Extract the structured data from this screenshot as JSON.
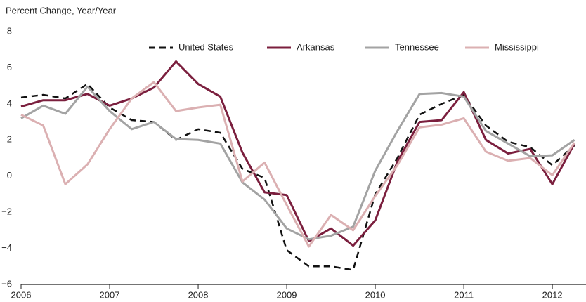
{
  "chart_data": {
    "type": "line",
    "ylabel": "Percent Change, Year/Year",
    "x": [
      2006,
      2006.25,
      2006.5,
      2006.75,
      2007,
      2007.25,
      2007.5,
      2007.75,
      2008,
      2008.25,
      2008.5,
      2008.75,
      2009,
      2009.25,
      2009.5,
      2009.75,
      2010,
      2010.25,
      2010.5,
      2010.75,
      2011,
      2011.25,
      2011.5,
      2011.75,
      2012,
      2012.25
    ],
    "series": [
      {
        "name": "United States",
        "color": "#111111",
        "dashed": true,
        "values": [
          4.35,
          4.5,
          4.3,
          5.1,
          3.8,
          3.1,
          3.0,
          2.0,
          2.6,
          2.4,
          0.4,
          -0.1,
          -4.1,
          -5.0,
          -5.0,
          -5.2,
          -1.0,
          1.0,
          3.4,
          4.0,
          4.5,
          2.8,
          1.9,
          1.6,
          0.6,
          1.7
        ]
      },
      {
        "name": "Arkansas",
        "color": "#7b1f3e",
        "dashed": false,
        "values": [
          3.85,
          4.2,
          4.2,
          4.55,
          3.9,
          4.3,
          4.9,
          6.35,
          5.1,
          4.4,
          1.3,
          -0.9,
          -1.05,
          -3.6,
          -2.9,
          -3.85,
          -2.45,
          0.8,
          3.0,
          3.1,
          4.65,
          2.0,
          1.25,
          1.5,
          -0.45,
          1.8
        ]
      },
      {
        "name": "Tennessee",
        "color": "#a3a3a3",
        "dashed": false,
        "values": [
          3.2,
          3.9,
          3.45,
          4.95,
          3.6,
          2.6,
          3.0,
          2.05,
          2.0,
          1.8,
          -0.35,
          -1.3,
          -2.9,
          -3.5,
          -3.3,
          -2.8,
          0.3,
          2.5,
          4.55,
          4.6,
          4.4,
          2.5,
          1.8,
          1.1,
          1.15,
          2.0
        ]
      },
      {
        "name": "Mississippi",
        "color": "#dbb0b2",
        "dashed": false,
        "values": [
          3.4,
          2.8,
          -0.45,
          0.65,
          2.6,
          4.3,
          5.2,
          3.6,
          3.8,
          3.95,
          -0.3,
          0.75,
          -1.6,
          -3.9,
          -2.15,
          -3.0,
          -1.1,
          0.6,
          2.7,
          2.85,
          3.2,
          1.35,
          0.85,
          1.0,
          0.05,
          1.85
        ]
      }
    ],
    "xlim": [
      2006,
      2012.38
    ],
    "xticks": [
      2006,
      2007,
      2008,
      2009,
      2010,
      2011,
      2012
    ],
    "ylim": [
      -6,
      8
    ],
    "yticks": [
      {
        "value": -6,
        "label": "−6"
      },
      {
        "value": -4,
        "label": "−4"
      },
      {
        "value": -2,
        "label": "−2"
      },
      0,
      2,
      4,
      6,
      8
    ],
    "legend": "top"
  }
}
